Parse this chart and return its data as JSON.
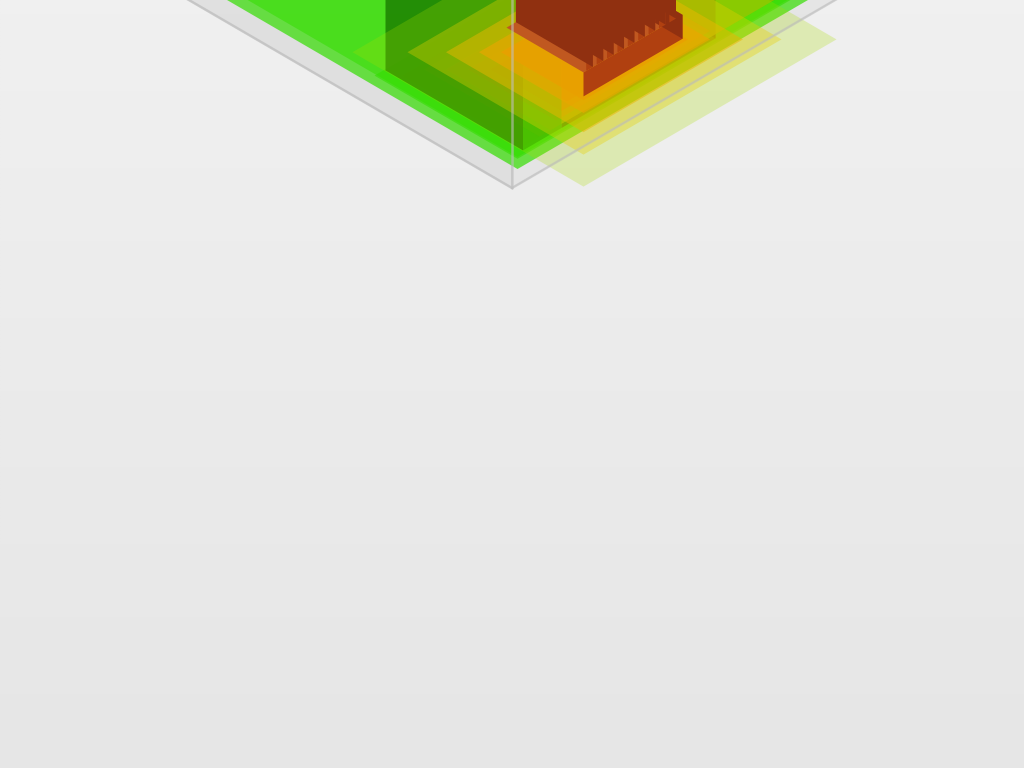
{
  "fig_size": [
    10.24,
    7.68
  ],
  "dpi": 100,
  "enc_color": "#d8d8d8",
  "enc_edge": "#c0c0c0",
  "fin_top": "#d0d0d0",
  "fin_front": "#c0c0c0",
  "fin_side": "#b0b0b0",
  "green_bright": "#33dd00",
  "green_mid": "#22aa00",
  "green_dark": "#1a7a00",
  "green_light": "#88ee44",
  "green_lime": "#66ff00",
  "copper_top": "#c05820",
  "copper_front": "#b04010",
  "copper_side": "#903010",
  "hot_red": "#ff2200",
  "hot_orange": "#ff6600",
  "hot_yellow": "#ffcc00",
  "warm_olive": "#88aa00",
  "bg_color": "#e8e8e8",
  "proj_sx": 0.55,
  "proj_sy": 0.32,
  "proj_sz": 0.6,
  "proj_ox": 5.12,
  "proj_oy": 5.8
}
